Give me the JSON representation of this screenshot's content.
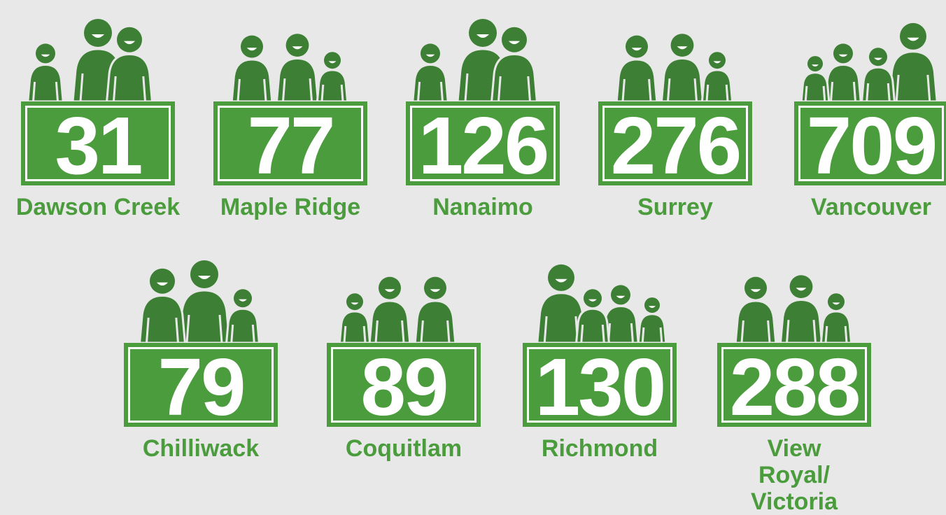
{
  "items": [
    {
      "number": 31,
      "label": "Dawson Creek"
    },
    {
      "number": 77,
      "label": "Maple Ridge"
    },
    {
      "number": 126,
      "label": "Nanaimo"
    },
    {
      "number": 276,
      "label": "Surrey"
    },
    {
      "number": 709,
      "label": "Vancouver"
    },
    {
      "number": 79,
      "label": "Chilliwack"
    },
    {
      "number": 89,
      "label": "Coquitlam"
    },
    {
      "number": 130,
      "label": "Richmond"
    },
    {
      "number": 288,
      "label": "View Royal/ Victoria"
    }
  ]
}
